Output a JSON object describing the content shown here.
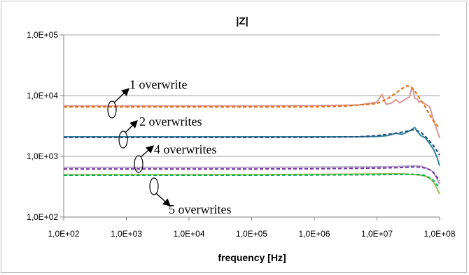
{
  "chart_data": {
    "type": "line",
    "title": "|Z|",
    "xlabel": "frequency [Hz]",
    "ylabel": "",
    "xscale": "log",
    "yscale": "log",
    "xlim": [
      100,
      100000000
    ],
    "ylim": [
      100,
      100000
    ],
    "x_tick_labels": [
      "1,0E+02",
      "1,0E+03",
      "1,0E+04",
      "1,0E+05",
      "1,0E+06",
      "1,0E+07",
      "1,0E+08"
    ],
    "y_tick_labels": [
      "1,0E+02",
      "1,0E+03",
      "1,0E+04",
      "1,0E+05"
    ],
    "grid": "horizontal major",
    "legend": "none",
    "annotations": [
      {
        "text": "1 overwrite"
      },
      {
        "text": "2 overwrites"
      },
      {
        "text": "4 overwrites"
      },
      {
        "text": "5 overwrites"
      }
    ],
    "series": [
      {
        "style": "solid",
        "color": "#d99694",
        "x": [
          100,
          1000,
          10000,
          100000,
          1000000,
          5000000,
          10000000,
          12000000,
          14000000,
          17000000,
          20000000,
          23000000,
          26000000,
          30000000,
          33000000,
          36000000,
          38000000,
          40000000,
          44000000,
          47000000,
          50000000,
          56000000,
          60000000,
          70000000,
          80000000,
          100000000
        ],
        "y": [
          6800,
          6800,
          6800,
          6800,
          6850,
          7000,
          7800,
          10500,
          7200,
          7500,
          8600,
          7600,
          8200,
          9000,
          9500,
          13500,
          12000,
          9000,
          8800,
          7800,
          8200,
          7500,
          7200,
          6500,
          4000,
          2000
        ]
      },
      {
        "style": "dashed",
        "color": "#e46c0a",
        "x": [
          100,
          1000,
          10000,
          100000,
          1000000,
          3000000,
          10000000,
          15000000,
          20000000,
          25000000,
          30000000,
          35000000,
          40000000,
          50000000,
          60000000,
          70000000,
          80000000,
          100000000
        ],
        "y": [
          6500,
          6500,
          6500,
          6500,
          6550,
          6700,
          7400,
          9000,
          11000,
          13000,
          14500,
          14000,
          12000,
          8500,
          6300,
          4800,
          3800,
          2900
        ]
      },
      {
        "style": "solid",
        "color": "#31849b",
        "x": [
          100,
          1000,
          10000,
          100000,
          1000000,
          5000000,
          10000000,
          15000000,
          20000000,
          25000000,
          30000000,
          35000000,
          40000000,
          45000000,
          50000000,
          60000000,
          70000000,
          80000000,
          90000000,
          100000000
        ],
        "y": [
          2100,
          2100,
          2100,
          2100,
          2100,
          2100,
          2120,
          2200,
          2400,
          2300,
          2500,
          2700,
          3000,
          2500,
          2200,
          2000,
          1600,
          1300,
          1000,
          700
        ]
      },
      {
        "style": "dashed",
        "color": "#1f497d",
        "x": [
          100,
          1000,
          10000,
          100000,
          1000000,
          5000000,
          10000000,
          15000000,
          20000000,
          25000000,
          30000000,
          35000000,
          40000000,
          50000000,
          60000000,
          80000000,
          100000000
        ],
        "y": [
          2050,
          2050,
          2050,
          2050,
          2060,
          2100,
          2200,
          2300,
          2400,
          2500,
          2600,
          2700,
          2750,
          2500,
          2100,
          1500,
          1050
        ]
      },
      {
        "style": "solid",
        "color": "#b3a2c7",
        "x": [
          100,
          1000,
          10000,
          100000,
          1000000,
          10000000,
          20000000,
          30000000,
          40000000,
          50000000,
          60000000,
          70000000,
          80000000,
          100000000
        ],
        "y": [
          660,
          660,
          660,
          660,
          665,
          670,
          680,
          690,
          700,
          690,
          650,
          600,
          550,
          350
        ]
      },
      {
        "style": "dashed",
        "color": "#7030a0",
        "x": [
          100,
          1000,
          10000,
          100000,
          1000000,
          10000000,
          20000000,
          30000000,
          40000000,
          50000000,
          60000000,
          70000000,
          80000000,
          100000000
        ],
        "y": [
          620,
          620,
          620,
          620,
          625,
          640,
          650,
          660,
          670,
          660,
          640,
          600,
          540,
          400
        ]
      },
      {
        "style": "solid",
        "color": "#9bbb59",
        "x": [
          100,
          1000,
          10000,
          100000,
          1000000,
          10000000,
          20000000,
          30000000,
          40000000,
          50000000,
          60000000,
          70000000,
          80000000,
          90000000,
          100000000
        ],
        "y": [
          500,
          500,
          500,
          500,
          505,
          515,
          520,
          510,
          500,
          490,
          470,
          430,
          380,
          300,
          240
        ]
      },
      {
        "style": "dashed",
        "color": "#00b050",
        "x": [
          100,
          1000,
          10000,
          100000,
          1000000,
          10000000,
          20000000,
          30000000,
          40000000,
          50000000,
          60000000,
          70000000,
          80000000,
          100000000
        ],
        "y": [
          490,
          490,
          490,
          490,
          492,
          498,
          502,
          505,
          505,
          500,
          480,
          440,
          400,
          300
        ]
      }
    ]
  }
}
